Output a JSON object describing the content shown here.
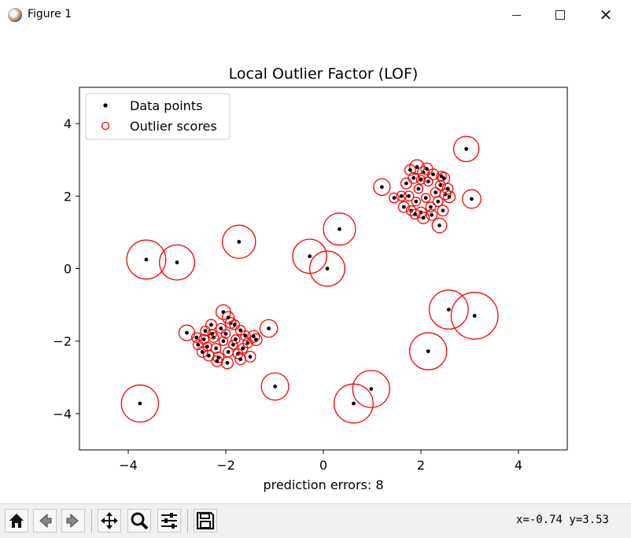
{
  "window": {
    "title": "Figure 1"
  },
  "toolbar": {
    "buttons": [
      "home-icon",
      "back-icon",
      "forward-icon",
      "pan-icon",
      "zoom-icon",
      "configure-icon",
      "save-icon"
    ],
    "coordinates": "x=-0.74 y=3.53"
  },
  "chart_data": {
    "type": "scatter",
    "title": "Local Outlier Factor (LOF)",
    "xlabel": "prediction errors: 8",
    "ylabel": "",
    "xlim": [
      -5,
      5
    ],
    "ylim": [
      -5,
      5
    ],
    "xticks": [
      -4,
      -2,
      0,
      2,
      4
    ],
    "yticks": [
      -4,
      -2,
      0,
      2,
      4
    ],
    "xtick_labels": [
      "−4",
      "−2",
      "0",
      "2",
      "4"
    ],
    "ytick_labels": [
      "−4",
      "−2",
      "0",
      "2",
      "4"
    ],
    "grid": false,
    "legend": {
      "placement": "top-left",
      "entries": [
        "Data points",
        "Outlier scores"
      ]
    },
    "colors": {
      "points": "#000000",
      "scores": "#ff0000"
    },
    "points": [
      [
        -3.63,
        0.25,
        0.4
      ],
      [
        -3.0,
        0.17,
        0.36
      ],
      [
        -1.73,
        0.74,
        0.34
      ],
      [
        -0.28,
        0.34,
        0.35
      ],
      [
        0.08,
        0.0,
        0.36
      ],
      [
        0.33,
        1.09,
        0.33
      ],
      [
        -1.12,
        -1.65,
        0.18
      ],
      [
        -2.8,
        -1.77,
        0.16
      ],
      [
        -0.99,
        -3.25,
        0.28
      ],
      [
        -3.76,
        -3.72,
        0.38
      ],
      [
        0.62,
        -3.72,
        0.4
      ],
      [
        0.98,
        -3.32,
        0.38
      ],
      [
        2.15,
        -2.28,
        0.38
      ],
      [
        2.57,
        -1.13,
        0.4
      ],
      [
        3.1,
        -1.3,
        0.48
      ],
      [
        1.2,
        2.25,
        0.17
      ],
      [
        2.93,
        3.3,
        0.26
      ],
      [
        3.04,
        1.92,
        0.19
      ],
      [
        2.38,
        1.19,
        0.15
      ],
      [
        2.47,
        2.49,
        0.12
      ],
      [
        1.92,
        2.8,
        0.15
      ],
      [
        1.45,
        1.95,
        0.1
      ],
      [
        -2.05,
        -1.2,
        0.15
      ],
      [
        -1.97,
        -2.6,
        0.12
      ],
      [
        -1.5,
        -2.43,
        0.11
      ],
      [
        -1.38,
        -1.96,
        0.12
      ],
      [
        -1.43,
        -1.87,
        0.12
      ],
      [
        -2.57,
        -2.1,
        0.1
      ],
      [
        -2.48,
        -2.3,
        0.11
      ],
      [
        -2.42,
        -1.72,
        0.1
      ],
      [
        -2.35,
        -2.4,
        0.11
      ],
      [
        -2.3,
        -1.55,
        0.11
      ],
      [
        -2.25,
        -1.9,
        0.1
      ],
      [
        -2.2,
        -2.2,
        0.1
      ],
      [
        -2.15,
        -2.45,
        0.11
      ],
      [
        -2.1,
        -1.65,
        0.1
      ],
      [
        -2.05,
        -2.0,
        0.09
      ],
      [
        -2.0,
        -1.8,
        0.09
      ],
      [
        -1.95,
        -2.3,
        0.1
      ],
      [
        -1.9,
        -1.5,
        0.11
      ],
      [
        -1.85,
        -2.1,
        0.09
      ],
      [
        -1.8,
        -1.95,
        0.09
      ],
      [
        -1.75,
        -2.35,
        0.1
      ],
      [
        -1.7,
        -1.7,
        0.1
      ],
      [
        -1.65,
        -2.2,
        0.1
      ],
      [
        -1.6,
        -1.85,
        0.1
      ],
      [
        -1.55,
        -2.05,
        0.1
      ],
      [
        -2.45,
        -1.95,
        0.1
      ],
      [
        -2.6,
        -1.9,
        0.1
      ],
      [
        -1.95,
        -1.35,
        0.12
      ],
      [
        -2.18,
        -2.55,
        0.11
      ],
      [
        -1.82,
        -1.55,
        0.1
      ],
      [
        -2.38,
        -2.15,
        0.09
      ],
      [
        -1.7,
        -2.5,
        0.11
      ],
      [
        -2.28,
        -1.8,
        0.09
      ],
      [
        1.65,
        1.7,
        0.11
      ],
      [
        1.7,
        2.35,
        0.11
      ],
      [
        1.75,
        2.0,
        0.1
      ],
      [
        1.8,
        1.6,
        0.1
      ],
      [
        1.85,
        2.5,
        0.11
      ],
      [
        1.9,
        1.85,
        0.09
      ],
      [
        1.95,
        2.2,
        0.09
      ],
      [
        2.0,
        1.55,
        0.11
      ],
      [
        2.05,
        2.65,
        0.12
      ],
      [
        2.1,
        1.95,
        0.09
      ],
      [
        2.15,
        2.4,
        0.09
      ],
      [
        2.2,
        1.7,
        0.1
      ],
      [
        2.25,
        2.6,
        0.11
      ],
      [
        2.3,
        2.1,
        0.1
      ],
      [
        2.35,
        1.85,
        0.1
      ],
      [
        2.4,
        2.3,
        0.1
      ],
      [
        2.45,
        1.6,
        0.11
      ],
      [
        2.5,
        2.05,
        0.11
      ],
      [
        2.55,
        2.2,
        0.11
      ],
      [
        2.58,
        1.98,
        0.12
      ],
      [
        1.6,
        2.0,
        0.1
      ],
      [
        2.0,
        2.45,
        0.09
      ],
      [
        1.88,
        1.5,
        0.1
      ],
      [
        2.22,
        1.48,
        0.11
      ],
      [
        2.05,
        1.4,
        0.12
      ],
      [
        2.12,
        2.75,
        0.12
      ],
      [
        1.78,
        2.72,
        0.11
      ],
      [
        2.42,
        2.55,
        0.1
      ]
    ]
  }
}
